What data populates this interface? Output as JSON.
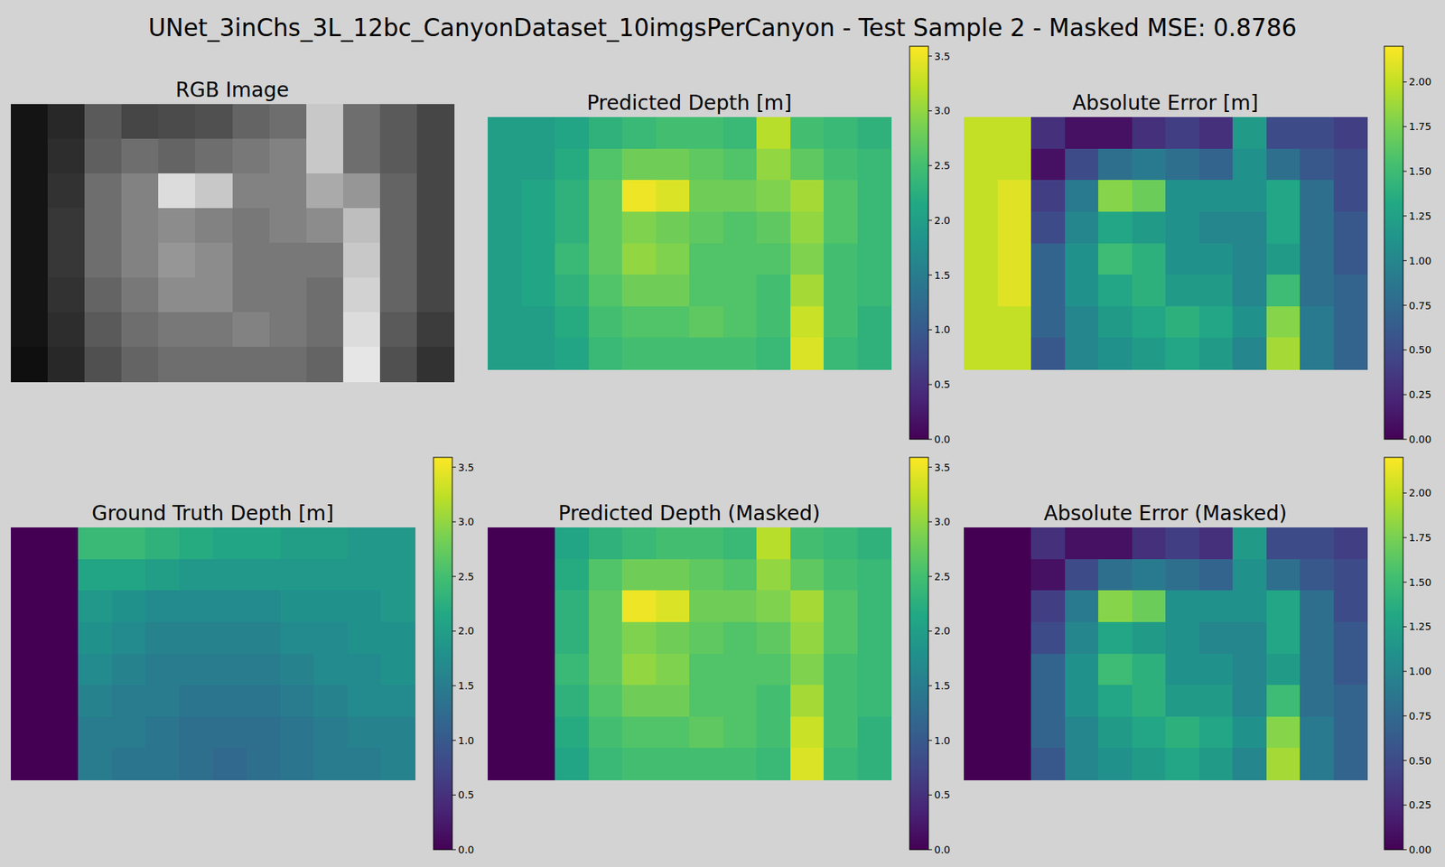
{
  "title": "UNet_3inChs_3L_12bc_CanyonDataset_10imgsPerCanyon - Test Sample 2 - Masked MSE: 0.8786",
  "chart_data": [
    {
      "type": "image",
      "title": "RGB Image",
      "color": "gray",
      "tick_labels": false,
      "color_range": [
        0,
        255
      ],
      "cells": [
        [
          20,
          40,
          90,
          70,
          75,
          80,
          100,
          110,
          200,
          110,
          90,
          70
        ],
        [
          20,
          45,
          95,
          110,
          100,
          110,
          120,
          130,
          200,
          110,
          90,
          70
        ],
        [
          20,
          50,
          110,
          130,
          220,
          200,
          130,
          130,
          170,
          150,
          100,
          70
        ],
        [
          20,
          55,
          110,
          130,
          140,
          130,
          120,
          130,
          140,
          190,
          100,
          70
        ],
        [
          20,
          55,
          110,
          130,
          150,
          140,
          120,
          120,
          120,
          200,
          100,
          70
        ],
        [
          20,
          50,
          100,
          120,
          140,
          140,
          120,
          120,
          110,
          210,
          100,
          70
        ],
        [
          20,
          45,
          90,
          110,
          120,
          120,
          130,
          120,
          110,
          220,
          90,
          60
        ],
        [
          15,
          40,
          80,
          100,
          110,
          110,
          110,
          110,
          100,
          230,
          80,
          50
        ]
      ]
    },
    {
      "type": "heatmap",
      "title": "Predicted Depth [m]",
      "color": "viridis",
      "tick_labels": false,
      "color_range": [
        0,
        3.59
      ],
      "color_ticks": [
        {
          "value": 0,
          "label": "0.0"
        },
        {
          "value": 0.5,
          "label": "0.5"
        },
        {
          "value": 1,
          "label": "1.0"
        },
        {
          "value": 1.5,
          "label": "1.5"
        },
        {
          "value": 2,
          "label": "2.0"
        },
        {
          "value": 2.5,
          "label": "2.5"
        },
        {
          "value": 3,
          "label": "3.0"
        },
        {
          "value": 3.5,
          "label": "3.5"
        }
      ],
      "cells": [
        [
          2.0,
          2.0,
          2.1,
          2.3,
          2.4,
          2.5,
          2.5,
          2.4,
          3.2,
          2.5,
          2.4,
          2.3
        ],
        [
          2.0,
          2.0,
          2.2,
          2.6,
          2.8,
          2.8,
          2.7,
          2.6,
          3.0,
          2.7,
          2.5,
          2.4
        ],
        [
          2.0,
          2.1,
          2.3,
          2.7,
          3.5,
          3.4,
          2.8,
          2.8,
          2.9,
          3.1,
          2.6,
          2.4
        ],
        [
          2.0,
          2.1,
          2.3,
          2.7,
          2.9,
          2.8,
          2.7,
          2.6,
          2.7,
          3.0,
          2.6,
          2.4
        ],
        [
          2.0,
          2.1,
          2.4,
          2.7,
          3.0,
          2.9,
          2.6,
          2.6,
          2.6,
          2.9,
          2.5,
          2.4
        ],
        [
          2.0,
          2.1,
          2.3,
          2.6,
          2.8,
          2.8,
          2.6,
          2.6,
          2.5,
          3.1,
          2.5,
          2.4
        ],
        [
          2.0,
          2.0,
          2.2,
          2.5,
          2.6,
          2.6,
          2.7,
          2.6,
          2.5,
          3.3,
          2.5,
          2.3
        ],
        [
          2.0,
          2.0,
          2.1,
          2.4,
          2.5,
          2.5,
          2.5,
          2.5,
          2.4,
          3.4,
          2.4,
          2.3
        ]
      ]
    },
    {
      "type": "heatmap",
      "title": "Absolute Error [m]",
      "color": "viridis",
      "tick_labels": false,
      "color_range": [
        0,
        2.2
      ],
      "color_ticks": [
        {
          "value": 0,
          "label": "0.00"
        },
        {
          "value": 0.25,
          "label": "0.25"
        },
        {
          "value": 0.5,
          "label": "0.50"
        },
        {
          "value": 0.75,
          "label": "0.75"
        },
        {
          "value": 1,
          "label": "1.00"
        },
        {
          "value": 1.25,
          "label": "1.25"
        },
        {
          "value": 1.5,
          "label": "1.50"
        },
        {
          "value": 1.75,
          "label": "1.75"
        },
        {
          "value": 2,
          "label": "2.00"
        }
      ],
      "cells": [
        [
          2.0,
          2.0,
          0.3,
          0.1,
          0.1,
          0.3,
          0.4,
          0.3,
          1.2,
          0.5,
          0.5,
          0.4
        ],
        [
          2.0,
          2.0,
          0.1,
          0.5,
          0.8,
          0.9,
          0.8,
          0.7,
          1.1,
          0.8,
          0.6,
          0.5
        ],
        [
          2.0,
          2.1,
          0.4,
          0.9,
          1.8,
          1.7,
          1.1,
          1.1,
          1.1,
          1.3,
          0.8,
          0.5
        ],
        [
          2.0,
          2.1,
          0.5,
          1.0,
          1.3,
          1.2,
          1.1,
          1.0,
          1.0,
          1.3,
          0.8,
          0.6
        ],
        [
          2.0,
          2.1,
          0.7,
          1.1,
          1.5,
          1.4,
          1.1,
          1.1,
          1.0,
          1.2,
          0.8,
          0.6
        ],
        [
          2.0,
          2.1,
          0.7,
          1.1,
          1.3,
          1.4,
          1.2,
          1.2,
          1.0,
          1.5,
          0.8,
          0.7
        ],
        [
          2.0,
          2.0,
          0.7,
          1.0,
          1.2,
          1.3,
          1.4,
          1.3,
          1.1,
          1.8,
          0.9,
          0.7
        ],
        [
          2.0,
          2.0,
          0.6,
          1.0,
          1.1,
          1.2,
          1.3,
          1.2,
          1.0,
          1.9,
          0.9,
          0.7
        ]
      ]
    },
    {
      "type": "heatmap",
      "title": "Ground Truth Depth [m]",
      "color": "viridis",
      "tick_labels": false,
      "color_range": [
        0,
        3.59
      ],
      "color_ticks": [
        {
          "value": 0,
          "label": "0.0"
        },
        {
          "value": 0.5,
          "label": "0.5"
        },
        {
          "value": 1,
          "label": "1.0"
        },
        {
          "value": 1.5,
          "label": "1.5"
        },
        {
          "value": 2,
          "label": "2.0"
        },
        {
          "value": 2.5,
          "label": "2.5"
        },
        {
          "value": 3,
          "label": "3.0"
        },
        {
          "value": 3.5,
          "label": "3.5"
        }
      ],
      "cells": [
        [
          0,
          0,
          2.4,
          2.4,
          2.3,
          2.2,
          2.1,
          2.1,
          2.0,
          2.0,
          1.9,
          1.9
        ],
        [
          0,
          0,
          2.1,
          2.1,
          2.0,
          1.9,
          1.9,
          1.9,
          1.9,
          1.9,
          1.9,
          1.9
        ],
        [
          0,
          0,
          1.9,
          1.8,
          1.7,
          1.7,
          1.7,
          1.7,
          1.8,
          1.8,
          1.8,
          1.9
        ],
        [
          0,
          0,
          1.8,
          1.7,
          1.6,
          1.6,
          1.6,
          1.6,
          1.7,
          1.7,
          1.8,
          1.8
        ],
        [
          0,
          0,
          1.7,
          1.6,
          1.5,
          1.5,
          1.5,
          1.5,
          1.6,
          1.7,
          1.7,
          1.8
        ],
        [
          0,
          0,
          1.6,
          1.5,
          1.5,
          1.4,
          1.4,
          1.4,
          1.5,
          1.6,
          1.7,
          1.7
        ],
        [
          0,
          0,
          1.5,
          1.5,
          1.4,
          1.3,
          1.3,
          1.3,
          1.4,
          1.5,
          1.6,
          1.6
        ],
        [
          0,
          0,
          1.5,
          1.4,
          1.4,
          1.3,
          1.2,
          1.3,
          1.4,
          1.5,
          1.5,
          1.6
        ]
      ]
    },
    {
      "type": "heatmap",
      "title": "Predicted Depth (Masked)",
      "color": "viridis",
      "tick_labels": false,
      "color_range": [
        0,
        3.59
      ],
      "color_ticks": [
        {
          "value": 0,
          "label": "0.0"
        },
        {
          "value": 0.5,
          "label": "0.5"
        },
        {
          "value": 1,
          "label": "1.0"
        },
        {
          "value": 1.5,
          "label": "1.5"
        },
        {
          "value": 2,
          "label": "2.0"
        },
        {
          "value": 2.5,
          "label": "2.5"
        },
        {
          "value": 3,
          "label": "3.0"
        },
        {
          "value": 3.5,
          "label": "3.5"
        }
      ],
      "cells": [
        [
          0,
          0,
          2.1,
          2.3,
          2.4,
          2.5,
          2.5,
          2.4,
          3.2,
          2.5,
          2.4,
          2.3
        ],
        [
          0,
          0,
          2.2,
          2.6,
          2.8,
          2.8,
          2.7,
          2.6,
          3.0,
          2.7,
          2.5,
          2.4
        ],
        [
          0,
          0,
          2.3,
          2.7,
          3.5,
          3.4,
          2.8,
          2.8,
          2.9,
          3.1,
          2.6,
          2.4
        ],
        [
          0,
          0,
          2.3,
          2.7,
          2.9,
          2.8,
          2.7,
          2.6,
          2.7,
          3.0,
          2.6,
          2.4
        ],
        [
          0,
          0,
          2.4,
          2.7,
          3.0,
          2.9,
          2.6,
          2.6,
          2.6,
          2.9,
          2.5,
          2.4
        ],
        [
          0,
          0,
          2.3,
          2.6,
          2.8,
          2.8,
          2.6,
          2.6,
          2.5,
          3.1,
          2.5,
          2.4
        ],
        [
          0,
          0,
          2.2,
          2.5,
          2.6,
          2.6,
          2.7,
          2.6,
          2.5,
          3.3,
          2.5,
          2.3
        ],
        [
          0,
          0,
          2.1,
          2.4,
          2.5,
          2.5,
          2.5,
          2.5,
          2.4,
          3.4,
          2.4,
          2.3
        ]
      ]
    },
    {
      "type": "heatmap",
      "title": "Absolute Error (Masked)",
      "color": "viridis",
      "tick_labels": false,
      "color_range": [
        0,
        2.2
      ],
      "color_ticks": [
        {
          "value": 0,
          "label": "0.00"
        },
        {
          "value": 0.25,
          "label": "0.25"
        },
        {
          "value": 0.5,
          "label": "0.50"
        },
        {
          "value": 0.75,
          "label": "0.75"
        },
        {
          "value": 1,
          "label": "1.00"
        },
        {
          "value": 1.25,
          "label": "1.25"
        },
        {
          "value": 1.5,
          "label": "1.50"
        },
        {
          "value": 1.75,
          "label": "1.75"
        },
        {
          "value": 2,
          "label": "2.00"
        }
      ],
      "cells": [
        [
          0,
          0,
          0.3,
          0.1,
          0.1,
          0.3,
          0.4,
          0.3,
          1.2,
          0.5,
          0.5,
          0.4
        ],
        [
          0,
          0,
          0.1,
          0.5,
          0.8,
          0.9,
          0.8,
          0.7,
          1.1,
          0.8,
          0.6,
          0.5
        ],
        [
          0,
          0,
          0.4,
          0.9,
          1.8,
          1.7,
          1.1,
          1.1,
          1.1,
          1.3,
          0.8,
          0.5
        ],
        [
          0,
          0,
          0.5,
          1.0,
          1.3,
          1.2,
          1.1,
          1.0,
          1.0,
          1.3,
          0.8,
          0.6
        ],
        [
          0,
          0,
          0.7,
          1.1,
          1.5,
          1.4,
          1.1,
          1.1,
          1.0,
          1.2,
          0.8,
          0.6
        ],
        [
          0,
          0,
          0.7,
          1.1,
          1.3,
          1.4,
          1.2,
          1.2,
          1.0,
          1.5,
          0.8,
          0.7
        ],
        [
          0,
          0,
          0.7,
          1.0,
          1.2,
          1.3,
          1.4,
          1.3,
          1.1,
          1.8,
          0.9,
          0.7
        ],
        [
          0,
          0,
          0.6,
          1.0,
          1.1,
          1.2,
          1.3,
          1.2,
          1.0,
          1.9,
          0.9,
          0.7
        ]
      ]
    }
  ]
}
